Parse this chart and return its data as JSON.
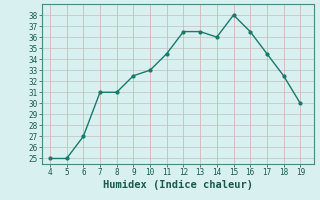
{
  "x": [
    4,
    5,
    6,
    7,
    8,
    9,
    10,
    11,
    12,
    13,
    14,
    15,
    16,
    17,
    18,
    19
  ],
  "y": [
    25,
    25,
    27,
    31,
    31,
    32.5,
    33,
    34.5,
    36.5,
    36.5,
    36,
    38,
    36.5,
    34.5,
    32.5,
    30
  ],
  "line_color": "#1a7a6a",
  "marker": "o",
  "marker_size": 2,
  "linewidth": 1.0,
  "xlabel": "Humidex (Indice chaleur)",
  "xlim": [
    3.5,
    19.8
  ],
  "ylim": [
    24.5,
    39
  ],
  "yticks": [
    25,
    26,
    27,
    28,
    29,
    30,
    31,
    32,
    33,
    34,
    35,
    36,
    37,
    38
  ],
  "xticks": [
    4,
    5,
    6,
    7,
    8,
    9,
    10,
    11,
    12,
    13,
    14,
    15,
    16,
    17,
    18,
    19
  ],
  "grid_h_color": "#c0c0c0",
  "grid_v_color": "#d4aaaa",
  "bg_color": "#d8f0f0",
  "tick_label_size": 5.5,
  "xlabel_size": 7.5
}
